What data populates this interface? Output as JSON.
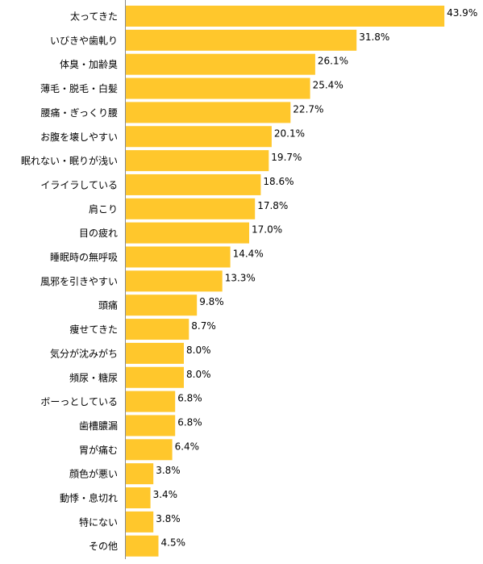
{
  "chart_data": {
    "type": "bar",
    "orientation": "horizontal",
    "categories": [
      "太ってきた",
      "いびきや歯軋り",
      "体臭・加齢臭",
      "薄毛・脱毛・白髪",
      "腰痛・ぎっくり腰",
      "お腹を壊しやすい",
      "眠れない・眠りが浅い",
      "イライラしている",
      "肩こり",
      "目の疲れ",
      "睡眠時の無呼吸",
      "風邪を引きやすい",
      "頭痛",
      "痩せてきた",
      "気分が沈みがち",
      "頻尿・糖尿",
      "ボーっとしている",
      "歯槽膿漏",
      "胃が痛む",
      "顔色が悪い",
      "動悸・息切れ",
      "特にない",
      "その他"
    ],
    "values": [
      43.9,
      31.8,
      26.1,
      25.4,
      22.7,
      20.1,
      19.7,
      18.6,
      17.8,
      17.0,
      14.4,
      13.3,
      9.8,
      8.7,
      8.0,
      8.0,
      6.8,
      6.8,
      6.4,
      3.8,
      3.4,
      3.8,
      4.5
    ],
    "value_labels": [
      "43.9%",
      "31.8%",
      "26.1%",
      "25.4%",
      "22.7%",
      "20.1%",
      "19.7%",
      "18.6%",
      "17.8%",
      "17.0%",
      "14.4%",
      "13.3%",
      "9.8%",
      "8.7%",
      "8.0%",
      "8.0%",
      "6.8%",
      "6.8%",
      "6.4%",
      "3.8%",
      "3.4%",
      "3.8%",
      "4.5%"
    ],
    "xlim": [
      0,
      45
    ],
    "grid": false,
    "legend": "none",
    "bar_color": "#FFC72C",
    "axis_color": "#888888"
  }
}
